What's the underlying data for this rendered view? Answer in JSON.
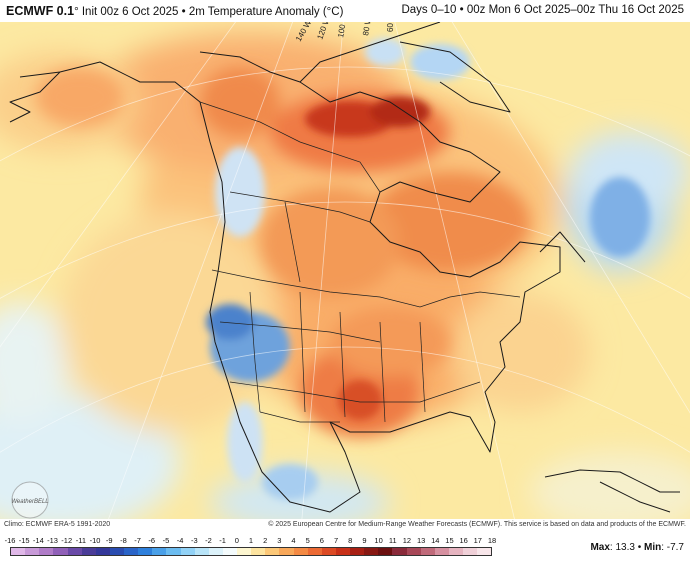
{
  "header": {
    "brand": "ECMWF 0.1",
    "degree": "°",
    "subtitle": " Init 00z 6 Oct 2025 • 2m Temperature Anomaly (°C)",
    "period": "Days 0–10 • 00z Mon 6 Oct 2025–00z Thu 16 Oct 2025"
  },
  "map": {
    "longitude_labels": [
      "140 W",
      "120 W",
      "100 W",
      "80 W",
      "60 W"
    ],
    "logo_text": "WeatherBELL"
  },
  "footer": {
    "climo": "Climo: ECMWF ERA-5 1991-2020",
    "copyright": "© 2025 European Centre for Medium-Range Weather Forecasts (ECMWF). This service is based on data and products of the ECMWF."
  },
  "colorbar": {
    "labels": [
      "-16",
      "-15",
      "-14",
      "-13",
      "-12",
      "-11",
      "-10",
      "-9",
      "-8",
      "-7",
      "-6",
      "-5",
      "-4",
      "-3",
      "-2",
      "-1",
      "0",
      "1",
      "2",
      "3",
      "4",
      "5",
      "6",
      "7",
      "8",
      "9",
      "10",
      "11",
      "12",
      "13",
      "14",
      "15",
      "16",
      "17",
      "18"
    ],
    "colors": [
      "#e0b8e8",
      "#c89ad8",
      "#b07cc8",
      "#9060b8",
      "#6a4aa8",
      "#4a3c98",
      "#34389a",
      "#2a4cb0",
      "#2a64c8",
      "#2e80dc",
      "#4aa0e8",
      "#6cbcf0",
      "#92d2f6",
      "#b8e4f8",
      "#dcf2fa",
      "#f4fbfc",
      "#fdf6d0",
      "#fde4a0",
      "#fcc878",
      "#f8a85a",
      "#f48a44",
      "#ec6a34",
      "#dc4a24",
      "#c83018",
      "#a82014",
      "#881812",
      "#6c1010",
      "#8a2a3a",
      "#a84858",
      "#c06a7a",
      "#d690a0",
      "#e6b4c0",
      "#f0d0d8",
      "#f8e6ea"
    ],
    "max_label": "Max",
    "max_value": "13.3",
    "sep": " • ",
    "min_label": "Min",
    "min_value": "-7.7"
  }
}
